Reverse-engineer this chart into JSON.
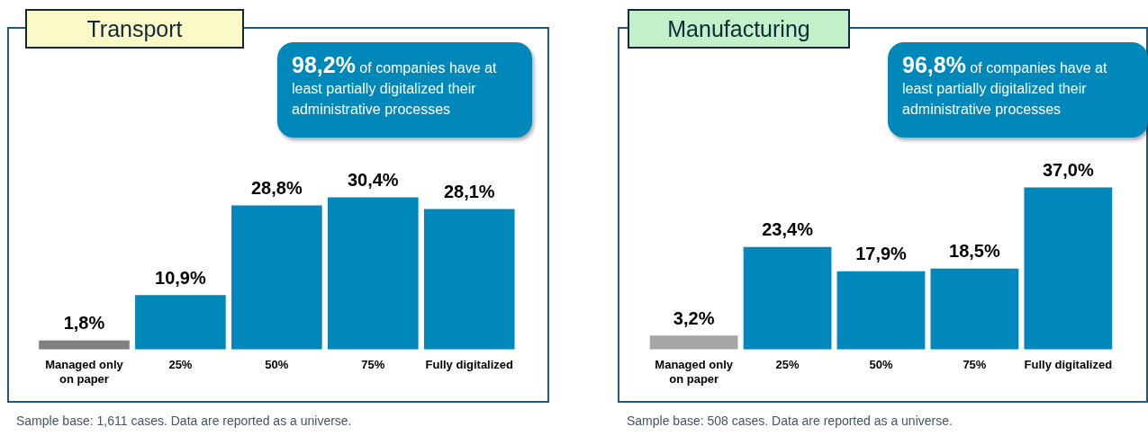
{
  "chart_data": [
    {
      "type": "bar",
      "title": "Transport",
      "categories": [
        "Managed only on paper",
        "25%",
        "50%",
        "75%",
        "Fully digitalized"
      ],
      "values": [
        1.8,
        10.9,
        28.8,
        30.4,
        28.1
      ],
      "colors": [
        "#808080",
        "#0088bb",
        "#0088bb",
        "#0088bb",
        "#0088bb"
      ],
      "value_labels": [
        "1,8%",
        "10,9%",
        "28,8%",
        "30,4%",
        "28,1%"
      ],
      "tick_labels": "x",
      "grid": false,
      "legend": false,
      "annotations": [
        "98,2% of companies have at least partially digitalized their administrative processes",
        "Sample base: 1,611 cases. Data are reported as a universe."
      ]
    },
    {
      "type": "bar",
      "title": "Manufacturing",
      "categories": [
        "Managed only on paper",
        "25%",
        "50%",
        "75%",
        "Fully digitalized"
      ],
      "values": [
        3.2,
        23.4,
        17.9,
        18.5,
        37.0
      ],
      "colors": [
        "#a6a6a6",
        "#0088bb",
        "#0088bb",
        "#0088bb",
        "#0088bb"
      ],
      "value_labels": [
        "3,2%",
        "23,4%",
        "17,9%",
        "18,5%",
        "37,0%"
      ],
      "tick_labels": "x",
      "grid": false,
      "legend": false,
      "annotations": [
        "96,8% of companies have at least partially digitalized their administrative processes",
        "Sample base: 508 cases. Data are reported as a universe."
      ]
    }
  ]
}
